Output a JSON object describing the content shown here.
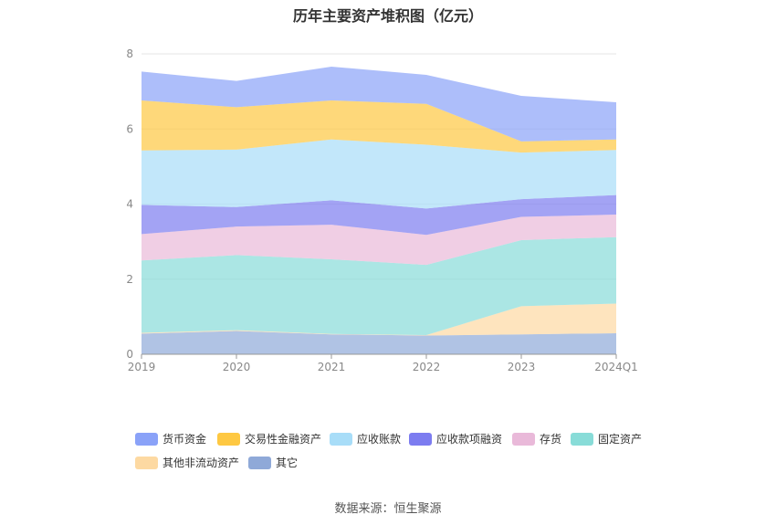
{
  "title": "历年主要资产堆积图（亿元）",
  "source": "数据来源：恒生聚源",
  "chart_data": {
    "type": "area",
    "stacked": true,
    "title": "历年主要资产堆积图（亿元）",
    "categories": [
      "2019",
      "2020",
      "2021",
      "2022",
      "2023",
      "2024Q1"
    ],
    "ylim": [
      0,
      8
    ],
    "yticks": [
      0,
      2,
      4,
      6,
      8
    ],
    "grid": true,
    "legend_position": "bottom",
    "series": [
      {
        "name": "其它",
        "color": "#8fa9d8",
        "values": [
          0.55,
          0.62,
          0.53,
          0.5,
          0.53,
          0.56
        ]
      },
      {
        "name": "其他非流动资产",
        "color": "#fdd9a2",
        "values": [
          0.02,
          0.02,
          0.01,
          0.01,
          0.75,
          0.79
        ]
      },
      {
        "name": "固定资产",
        "color": "#88dcd8",
        "values": [
          1.93,
          2.0,
          1.99,
          1.87,
          1.76,
          1.77
        ]
      },
      {
        "name": "存货",
        "color": "#e9b9d9",
        "values": [
          0.7,
          0.76,
          0.92,
          0.8,
          0.62,
          0.6
        ]
      },
      {
        "name": "应收款项融资",
        "color": "#7c7cf0",
        "values": [
          0.78,
          0.52,
          0.65,
          0.7,
          0.47,
          0.52
        ]
      },
      {
        "name": "应收账款",
        "color": "#a8ddf8",
        "values": [
          1.45,
          1.53,
          1.62,
          1.7,
          1.24,
          1.2
        ]
      },
      {
        "name": "交易性金融资产",
        "color": "#fec842",
        "values": [
          1.33,
          1.13,
          1.04,
          1.09,
          0.3,
          0.28
        ]
      },
      {
        "name": "货币资金",
        "color": "#8aa2f8",
        "values": [
          0.77,
          0.7,
          0.9,
          0.77,
          1.21,
          0.99
        ]
      }
    ]
  },
  "legend": [
    {
      "label": "货币资金",
      "color": "#8aa2f8"
    },
    {
      "label": "交易性金融资产",
      "color": "#fec842"
    },
    {
      "label": "应收账款",
      "color": "#a8ddf8"
    },
    {
      "label": "应收款项融资",
      "color": "#7c7cf0"
    },
    {
      "label": "存货",
      "color": "#e9b9d9"
    },
    {
      "label": "固定资产",
      "color": "#88dcd8"
    },
    {
      "label": "其他非流动资产",
      "color": "#fdd9a2"
    },
    {
      "label": "其它",
      "color": "#8fa9d8"
    }
  ]
}
